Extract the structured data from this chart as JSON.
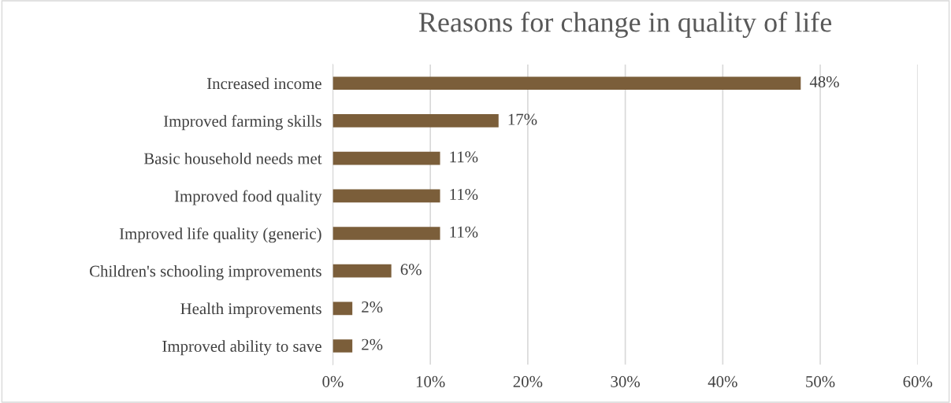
{
  "chart_data": {
    "type": "bar",
    "orientation": "horizontal",
    "title": "Reasons for change in quality of life",
    "categories": [
      "Increased income",
      "Improved farming skills",
      "Basic household needs met",
      "Improved food quality",
      "Improved life quality (generic)",
      "Children's schooling improvements",
      "Health improvements",
      "Improved ability to save"
    ],
    "values": [
      48,
      17,
      11,
      11,
      11,
      6,
      2,
      2
    ],
    "value_labels": [
      "48%",
      "17%",
      "11%",
      "11%",
      "11%",
      "6%",
      "2%",
      "2%"
    ],
    "color": "#7b5e3a",
    "xlim": [
      0,
      60
    ],
    "xticks": [
      {
        "value": 0,
        "label": "0%"
      },
      {
        "value": 10,
        "label": "10%"
      },
      {
        "value": 20,
        "label": "20%"
      },
      {
        "value": 30,
        "label": "30%"
      },
      {
        "value": 40,
        "label": "40%"
      },
      {
        "value": 50,
        "label": "50%"
      },
      {
        "value": 60,
        "label": "60%"
      }
    ],
    "grid": "x"
  }
}
